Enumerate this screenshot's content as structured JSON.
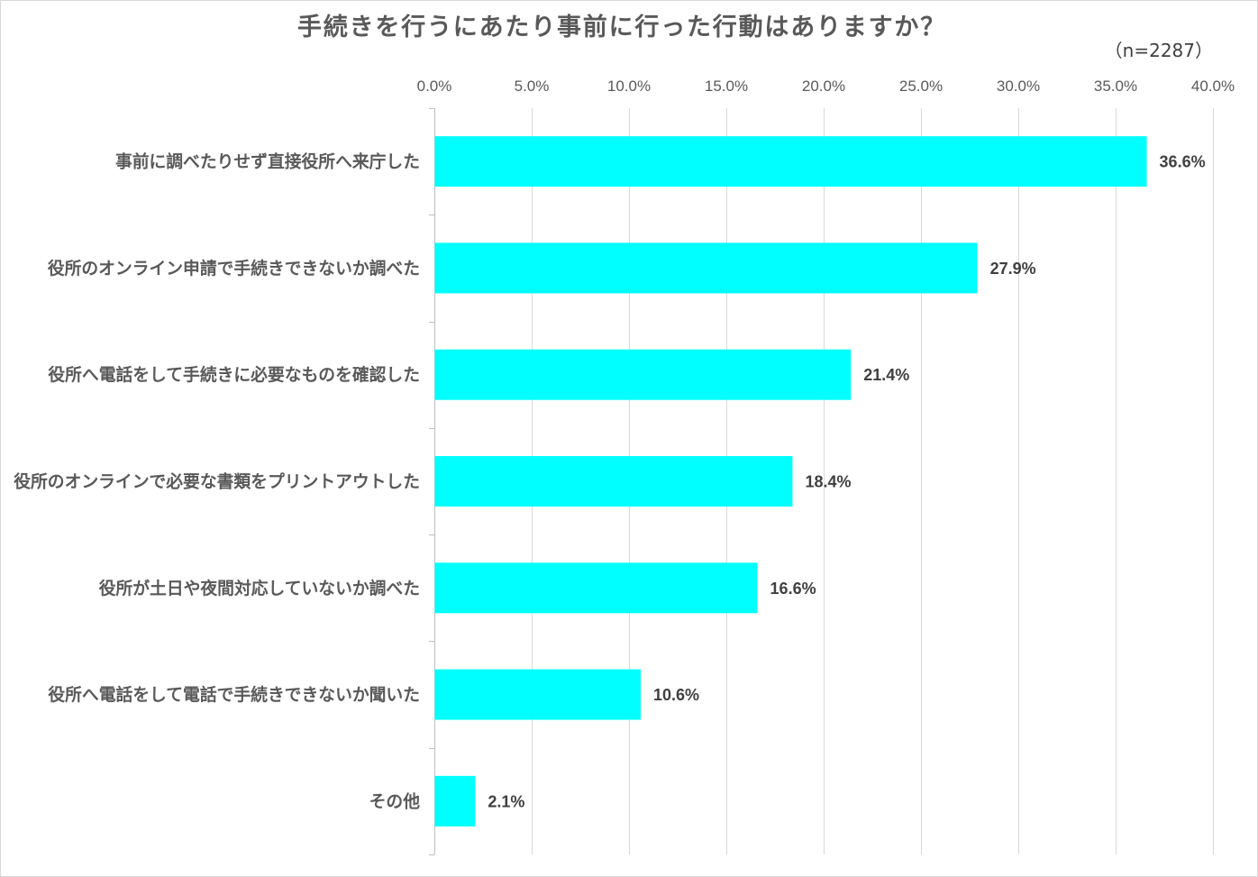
{
  "chart_data": {
    "type": "bar",
    "orientation": "horizontal",
    "title": "手続きを行うにあたり事前に行った行動はありますか？",
    "subtitle": "（n=2287）",
    "categories": [
      "事前に調べたりせず直接役所へ来庁した",
      "役所のオンライン申請で手続きできないか調べた",
      "役所へ電話をして手続きに必要なものを確認した",
      "役所のオンラインで必要な書類をプリントアウトした",
      "役所が土日や夜間対応していないか調べた",
      "役所へ電話をして電話で手続きできないか聞いた",
      "その他"
    ],
    "values": [
      36.6,
      27.9,
      21.4,
      18.4,
      16.6,
      10.6,
      2.1
    ],
    "value_labels": [
      "36.6%",
      "27.9%",
      "21.4%",
      "18.4%",
      "16.6%",
      "10.6%",
      "2.1%"
    ],
    "xlim": [
      0,
      40
    ],
    "xticks": [
      0,
      5,
      10,
      15,
      20,
      25,
      30,
      35,
      40
    ],
    "xtick_labels": [
      "0.0%",
      "5.0%",
      "10.0%",
      "15.0%",
      "20.0%",
      "25.0%",
      "30.0%",
      "35.0%",
      "40.0%"
    ],
    "x_axis_position": "top",
    "grid": true,
    "bar_color": "#00FFFF",
    "grid_color": "#D9D9D9",
    "border_color": "#D9D9D9"
  }
}
